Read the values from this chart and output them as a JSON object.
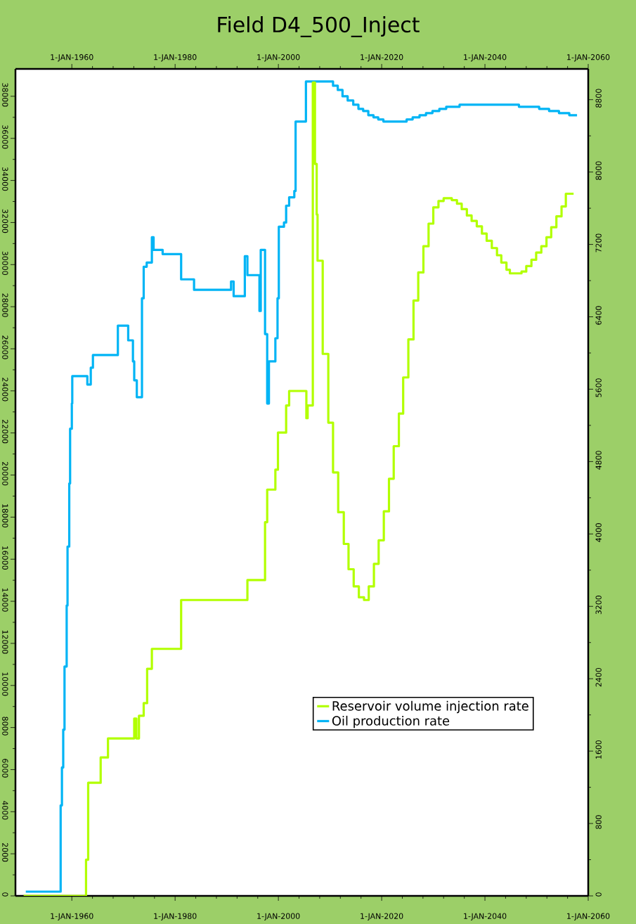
{
  "chart_data": {
    "type": "step",
    "title": "Field D4_500_Inject",
    "xlim": [
      "1949-02",
      "2060-01-01"
    ],
    "xticks": [
      {
        "value": "1960-01-01",
        "label": "1-JAN-1960"
      },
      {
        "value": "1980-01-01",
        "label": "1-JAN-1980"
      },
      {
        "value": "2000-01-01",
        "label": "1-JAN-2000"
      },
      {
        "value": "2020-01-01",
        "label": "1-JAN-2020"
      },
      {
        "value": "2040-01-01",
        "label": "1-JAN-2040"
      },
      {
        "value": "2060-01-01",
        "label": "1-JAN-2060"
      }
    ],
    "x2lim": [
      "1949-02",
      "2060-01-01"
    ],
    "x2ticks": [
      {
        "value": "1960-01-01",
        "label": "1-JAN-1960"
      },
      {
        "value": "1980-01-01",
        "label": "1-JAN-1980"
      },
      {
        "value": "2000-01-01",
        "label": "1-JAN-2000"
      },
      {
        "value": "2020-01-01",
        "label": "1-JAN-2020"
      },
      {
        "value": "2040-01-01",
        "label": "1-JAN-2040"
      },
      {
        "value": "2060-01-01",
        "label": "1-JAN-2060"
      }
    ],
    "ylim": [
      0,
      39300
    ],
    "yticks": [
      0,
      2000,
      4000,
      6000,
      8000,
      10000,
      12000,
      14000,
      16000,
      18000,
      20000,
      22000,
      24000,
      26000,
      28000,
      30000,
      32000,
      34000,
      36000,
      38000
    ],
    "y2lim": [
      0,
      9140
    ],
    "y2ticks": [
      0,
      800,
      1600,
      2400,
      3200,
      4000,
      4800,
      5600,
      6400,
      7200,
      8000,
      8800
    ],
    "legend": "bottom right",
    "series": [
      {
        "name": "Reservoir volume injection rate",
        "color": "#b2ff00",
        "axis": "y2",
        "x": [
          "1950-09",
          "1962-10",
          "1963-03",
          "1965-08",
          "1967-01",
          "1972-02",
          "1972-07",
          "1973-01",
          "1973-12",
          "1974-08",
          "1975-07",
          "1981-03",
          "1994-01",
          "1997-06",
          "1997-11",
          "1999-06",
          "1999-12",
          "2001-07",
          "2002-02",
          "2005-06",
          "2005-09",
          "2006-09",
          "2007-02",
          "2007-06",
          "2007-08",
          "2008-08",
          "2009-09",
          "2010-08",
          "2011-08",
          "2012-09",
          "2013-08",
          "2014-08",
          "2015-08",
          "2016-08",
          "2017-07",
          "2018-07",
          "2019-06",
          "2020-06",
          "2021-06",
          "2022-05",
          "2023-05",
          "2024-03",
          "2025-03",
          "2026-03",
          "2027-02",
          "2028-02",
          "2029-02",
          "2030-01",
          "2031-01",
          "2032-01",
          "2033-08",
          "2034-08",
          "2035-07",
          "2036-07",
          "2037-06",
          "2038-06",
          "2039-06",
          "2040-05",
          "2041-05",
          "2042-05",
          "2043-03",
          "2044-03",
          "2044-11",
          "2047-02",
          "2048-01",
          "2049-01",
          "2049-12",
          "2050-12",
          "2051-12",
          "2052-11",
          "2053-11",
          "2054-11",
          "2055-09",
          "2057-03"
        ],
        "values": [
          0,
          400,
          1250,
          1530,
          1740,
          1960,
          1740,
          1990,
          2130,
          2510,
          2730,
          3270,
          3490,
          4130,
          4490,
          4710,
          5120,
          5420,
          5580,
          5280,
          5420,
          8990,
          8090,
          7530,
          7020,
          5990,
          5230,
          4680,
          4240,
          3890,
          3610,
          3420,
          3300,
          3270,
          3420,
          3670,
          3930,
          4250,
          4610,
          4970,
          5330,
          5730,
          6150,
          6580,
          6890,
          7180,
          7430,
          7610,
          7680,
          7710,
          7690,
          7650,
          7590,
          7520,
          7460,
          7400,
          7320,
          7240,
          7160,
          7080,
          7000,
          6920,
          6880,
          6900,
          6960,
          7030,
          7110,
          7180,
          7280,
          7390,
          7510,
          7620,
          7760,
          7760
        ]
      },
      {
        "name": "Oil production rate",
        "color": "#00b4f5",
        "x": [
          "1951-02",
          "1957-11",
          "1958-02",
          "1958-05",
          "1958-08",
          "1959-01",
          "1959-03",
          "1959-07",
          "1959-09",
          "1960-01",
          "1960-02",
          "1963-01",
          "1963-09",
          "1964-02",
          "1968-12",
          "1970-12",
          "1971-11",
          "1972-02",
          "1972-08",
          "1973-08",
          "1973-12",
          "1974-07",
          "1975-07",
          "1975-11",
          "1977-08",
          "1981-03",
          "1983-09",
          "1990-11",
          "1991-05",
          "1993-07",
          "1994-01",
          "1996-05",
          "1996-08",
          "1997-06",
          "1997-11",
          "1998-03",
          "1999-06",
          "1999-11",
          "2000-02",
          "2001-02",
          "2001-07",
          "2002-02",
          "2003-02",
          "2003-05",
          "2005-05",
          "2010-08",
          "2011-07",
          "2012-06",
          "2013-06",
          "2014-07",
          "2015-07",
          "2016-06",
          "2017-06",
          "2018-06",
          "2019-05",
          "2020-05",
          "2022-03",
          "2023-07",
          "2024-11",
          "2026-01",
          "2027-05",
          "2028-08",
          "2029-11",
          "2031-03",
          "2032-07",
          "2033-11",
          "2035-02",
          "2036-05",
          "2042-09",
          "2046-08",
          "2049-03",
          "2050-07",
          "2052-06",
          "2054-05",
          "2056-05",
          "2057-11"
        ],
        "values": [
          200,
          4300,
          6100,
          7900,
          10900,
          13800,
          16600,
          19600,
          22200,
          23400,
          24700,
          24300,
          25100,
          25700,
          27100,
          26400,
          25400,
          24500,
          23700,
          28400,
          29900,
          30100,
          31300,
          30700,
          30500,
          29300,
          28800,
          29200,
          28500,
          30400,
          29500,
          27800,
          30700,
          26700,
          23400,
          25400,
          26500,
          28400,
          31800,
          32000,
          32800,
          33200,
          33500,
          36800,
          38700,
          38500,
          38300,
          38000,
          37800,
          37600,
          37400,
          37300,
          37100,
          37000,
          36900,
          36800,
          36800,
          36800,
          36900,
          37000,
          37100,
          37200,
          37300,
          37400,
          37500,
          37500,
          37600,
          37600,
          37600,
          37500,
          37500,
          37400,
          37300,
          37200,
          37100,
          37100
        ]
      }
    ]
  }
}
